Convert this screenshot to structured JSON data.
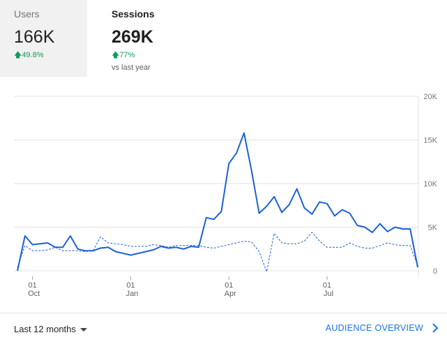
{
  "metrics": {
    "users": {
      "label": "Users",
      "value": "166K",
      "change": "49.8%"
    },
    "sessions": {
      "label": "Sessions",
      "value": "269K",
      "change": "77%",
      "note": "vs last year"
    }
  },
  "footer": {
    "date_range": "Last 12 months",
    "link": "AUDIENCE OVERVIEW"
  },
  "colors": {
    "primary": "#1a62d6",
    "positive": "#0f9d58",
    "link": "#1a73e8",
    "grid": "#e0e0e0"
  },
  "icons": {
    "change_arrow": "arrow-up-icon",
    "dropdown": "caret-down-icon",
    "link": "chevron-right-icon"
  },
  "chart_data": {
    "type": "line",
    "ylim": [
      0,
      20000
    ],
    "y_ticks": [
      "0",
      "5K",
      "10K",
      "15K",
      "20K"
    ],
    "y_tick_values": [
      0,
      5000,
      10000,
      15000,
      20000
    ],
    "x_ticks": [
      {
        "day": "01",
        "month": "Oct",
        "index": 2
      },
      {
        "day": "01",
        "month": "Jan",
        "index": 15
      },
      {
        "day": "01",
        "month": "Apr",
        "index": 28
      },
      {
        "day": "01",
        "month": "Jul",
        "index": 41
      }
    ],
    "series": [
      {
        "style": "solid",
        "values": [
          0,
          4000,
          3000,
          3100,
          3200,
          2700,
          2700,
          4000,
          2500,
          2300,
          2300,
          2600,
          2700,
          2200,
          2000,
          1800,
          2000,
          2200,
          2400,
          2800,
          2600,
          2700,
          2500,
          2800,
          2700,
          6100,
          5900,
          6800,
          12300,
          13500,
          15800,
          11500,
          6600,
          7400,
          8500,
          6700,
          7600,
          9400,
          7200,
          6500,
          7900,
          7700,
          6300,
          7000,
          6600,
          5200,
          5000,
          4400,
          5400,
          4500,
          5000,
          4800,
          4800,
          400
        ]
      },
      {
        "style": "dashed",
        "values": [
          400,
          2900,
          2300,
          2300,
          2400,
          2700,
          2300,
          2300,
          2300,
          2200,
          2300,
          3900,
          3200,
          3100,
          3000,
          2800,
          2800,
          2800,
          3000,
          2900,
          2700,
          2900,
          2900,
          2900,
          2900,
          2700,
          2600,
          2800,
          3000,
          3200,
          3400,
          3300,
          2200,
          -100,
          4300,
          3200,
          3100,
          3100,
          3400,
          4400,
          3400,
          2700,
          2700,
          2700,
          3200,
          2800,
          2600,
          2600,
          2900,
          3200,
          3000,
          2900,
          2900,
          600
        ]
      }
    ],
    "grid": true
  }
}
